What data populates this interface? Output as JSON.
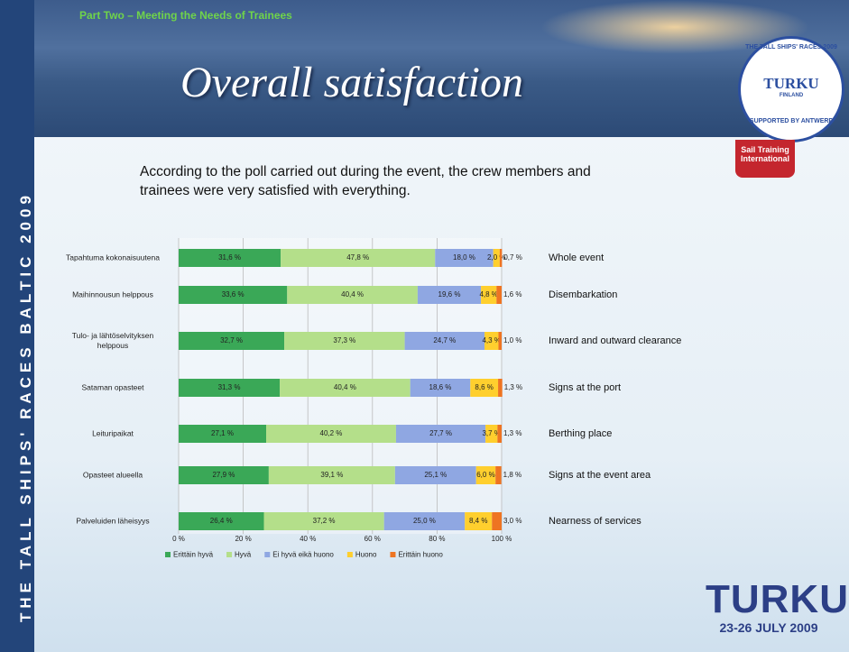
{
  "slide": {
    "side_text": "THE TALL SHIPS' RACES BALTIC 2009",
    "section": "Part Two – Meeting the Needs of Trainees",
    "heading": "Overall satisfaction",
    "intro": "According to the poll carried out during the event, the crew members and trainees were very satisfied with everything.",
    "logo": {
      "ring": "THE TALL SHIPS' RACES 2009",
      "city": "TURKU",
      "country": "FINLAND",
      "support": "SUPPORTED BY ANTWERP",
      "org": "Sail Training International"
    },
    "footer": {
      "city": "TURKU",
      "dates": "23-26 JULY 2009"
    }
  },
  "chart_data": {
    "type": "stacked_bar_horizontal",
    "categories": [
      "Tapahtuma kokonaisuutena",
      "Maihinnousun helppous",
      "Tulo- ja lähtöselvityksen helppous",
      "Sataman opasteet",
      "Leituripaikat",
      "Opasteet alueella",
      "Palveluiden läheisyys"
    ],
    "english_labels": [
      "Whole event",
      "Disembarkation",
      "Inward and outward clearance",
      "Signs at the port",
      "Berthing place",
      "Signs at the event area",
      "Nearness of services"
    ],
    "series": [
      {
        "name": "Erittäin hyvä",
        "color": "#3aa857",
        "values": [
          31.6,
          33.6,
          32.7,
          31.3,
          27.1,
          27.9,
          26.4
        ],
        "value_labels": [
          "31,6 %",
          "33,6 %",
          "32,7 %",
          "31,3 %",
          "27,1 %",
          "27,9 %",
          "26,4 %"
        ]
      },
      {
        "name": "Hyvä",
        "color": "#b4df8a",
        "values": [
          47.8,
          40.4,
          37.3,
          40.4,
          40.2,
          39.1,
          37.2
        ],
        "value_labels": [
          "47,8 %",
          "40,4 %",
          "37,3 %",
          "40,4 %",
          "40,2 %",
          "39,1 %",
          "37,2 %"
        ]
      },
      {
        "name": "Ei hyvä eikä huono",
        "color": "#8fa7e2",
        "values": [
          18.0,
          19.6,
          24.7,
          18.6,
          27.7,
          25.1,
          25.0
        ],
        "value_labels": [
          "18,0 %",
          "19,6 %",
          "24,7 %",
          "18,6 %",
          "27,7 %",
          "25,1 %",
          "25,0 %"
        ]
      },
      {
        "name": "Huono",
        "color": "#ffcf2e",
        "values": [
          2.0,
          4.8,
          4.3,
          8.6,
          3.7,
          6.0,
          8.4
        ],
        "value_labels": [
          "2,0 %",
          "4,8 %",
          "4,3 %",
          "8,6 %",
          "3,7 %",
          "6,0 %",
          "8,4 %"
        ]
      },
      {
        "name": "Erittäin huono",
        "color": "#ee7422",
        "values": [
          0.7,
          1.6,
          1.0,
          1.3,
          1.3,
          1.8,
          3.0
        ],
        "value_labels": [
          "0,7 %",
          "1,6 %",
          "1,0 %",
          "1,3 %",
          "1,3 %",
          "1,8 %",
          "3,0 %"
        ]
      }
    ],
    "xlim": [
      0,
      100
    ],
    "xticks": [
      {
        "value": 0,
        "label": "0 %"
      },
      {
        "value": 20,
        "label": "20 %"
      },
      {
        "value": 40,
        "label": "40 %"
      },
      {
        "value": 60,
        "label": "60 %"
      },
      {
        "value": 80,
        "label": "80 %"
      },
      {
        "value": 100,
        "label": "100 %"
      }
    ],
    "grid": true,
    "legend": "bottom"
  }
}
